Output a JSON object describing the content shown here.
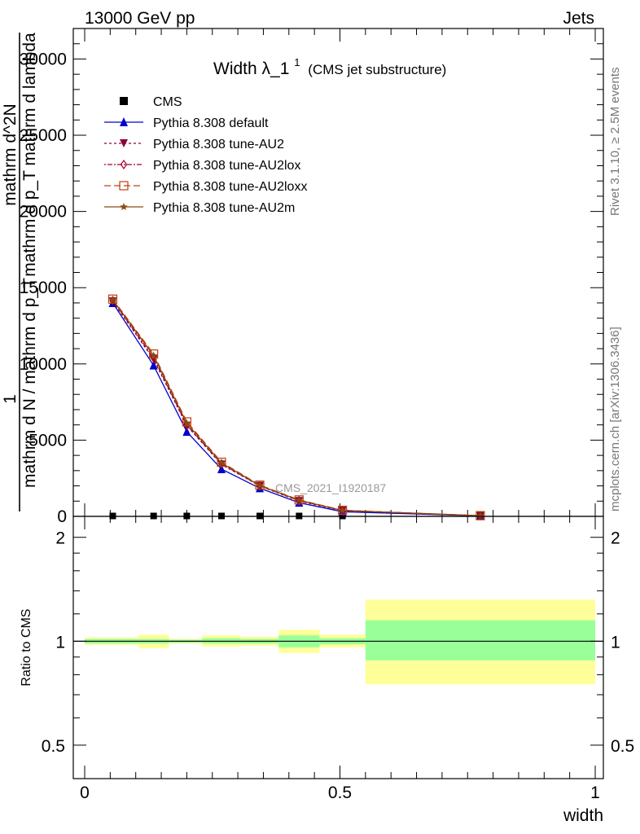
{
  "header": {
    "left": "13000 GeV pp",
    "right": "Jets"
  },
  "side_labels": {
    "rivet": "Rivet 3.1.10, ≥ 2.5M events",
    "mcplots": "mcplots.cern.ch [arXiv:1306.3436]"
  },
  "chart_data": [
    {
      "type": "line",
      "title_main": "Width λ_1",
      "title_sup": "1",
      "title_note": "(CMS jet substructure)",
      "watermark": "CMS_2021_I1920187",
      "ylabel_lines": [
        "1",
        "mathrm d N / mathrm d p_T",
        "mathrm d^2N",
        "mathrm d p_T mathrm d lambda"
      ],
      "xlim": [
        0,
        1
      ],
      "ylim": [
        0,
        32000
      ],
      "yticks": [
        0,
        5000,
        10000,
        15000,
        20000,
        25000,
        30000
      ],
      "ytick_labels": [
        "0",
        "5000",
        "10000",
        "15000",
        "20000",
        "25000",
        "30000"
      ],
      "x": [
        0.055,
        0.135,
        0.2,
        0.268,
        0.343,
        0.42,
        0.505,
        0.775
      ],
      "series": [
        {
          "name": "CMS",
          "marker": "square",
          "color": "#000000",
          "dash": "none",
          "values": [
            0,
            0,
            0,
            0,
            0,
            0,
            0,
            0
          ]
        },
        {
          "name": "Pythia 8.308 default",
          "marker": "triangle-up",
          "color": "#0000cc",
          "dash": "none",
          "values": [
            14000,
            9900,
            5550,
            3100,
            1850,
            900,
            300,
            30
          ]
        },
        {
          "name": "Pythia 8.308 tune-AU2",
          "marker": "triangle-down",
          "color": "#8b0038",
          "dash": "3,3",
          "values": [
            14100,
            10300,
            5950,
            3400,
            2000,
            1000,
            370,
            40
          ]
        },
        {
          "name": "Pythia 8.308 tune-AU2lox",
          "marker": "diamond-open",
          "color": "#a0002a",
          "dash": "2,2,6,2",
          "values": [
            14150,
            10400,
            6000,
            3450,
            2000,
            1030,
            380,
            42
          ]
        },
        {
          "name": "Pythia 8.308 tune-AU2loxx",
          "marker": "square-open",
          "color": "#c04010",
          "dash": "8,4",
          "values": [
            14250,
            10650,
            6200,
            3550,
            2050,
            1080,
            400,
            45
          ]
        },
        {
          "name": "Pythia 8.308 tune-AU2m",
          "marker": "star",
          "color": "#8b4a10",
          "dash": "none",
          "values": [
            14200,
            10550,
            6100,
            3500,
            2020,
            1060,
            390,
            44
          ]
        }
      ]
    },
    {
      "type": "area",
      "ylabel": "Ratio to CMS",
      "xlabel": "width",
      "xlim": [
        0,
        1
      ],
      "ylim": [
        0.4,
        2.3
      ],
      "log_y": true,
      "yticks": [
        0.5,
        1,
        2
      ],
      "ytick_labels": [
        "0.5",
        "1",
        "2"
      ],
      "xticks": [
        0,
        0.5,
        1
      ],
      "xtick_labels": [
        "0",
        "0.5",
        "1"
      ],
      "bins": [
        {
          "x0": 0.0,
          "x1": 0.105,
          "stat": [
            0.985,
            1.015
          ],
          "total": [
            0.975,
            1.025
          ]
        },
        {
          "x0": 0.105,
          "x1": 0.165,
          "stat": [
            0.985,
            1.015
          ],
          "total": [
            0.955,
            1.045
          ]
        },
        {
          "x0": 0.165,
          "x1": 0.23,
          "stat": [
            0.99,
            1.01
          ],
          "total": [
            0.985,
            1.015
          ]
        },
        {
          "x0": 0.23,
          "x1": 0.305,
          "stat": [
            0.985,
            1.02
          ],
          "total": [
            0.965,
            1.04
          ]
        },
        {
          "x0": 0.305,
          "x1": 0.38,
          "stat": [
            0.985,
            1.015
          ],
          "total": [
            0.97,
            1.03
          ]
        },
        {
          "x0": 0.38,
          "x1": 0.46,
          "stat": [
            0.96,
            1.04
          ],
          "total": [
            0.925,
            1.08
          ]
        },
        {
          "x0": 0.46,
          "x1": 0.55,
          "stat": [
            0.98,
            1.02
          ],
          "total": [
            0.96,
            1.045
          ]
        },
        {
          "x0": 0.55,
          "x1": 1.0,
          "stat": [
            0.88,
            1.15
          ],
          "total": [
            0.75,
            1.32
          ]
        }
      ],
      "colors": {
        "stat": "#99ff99",
        "total": "#ffff99",
        "line": "#000000"
      }
    }
  ]
}
